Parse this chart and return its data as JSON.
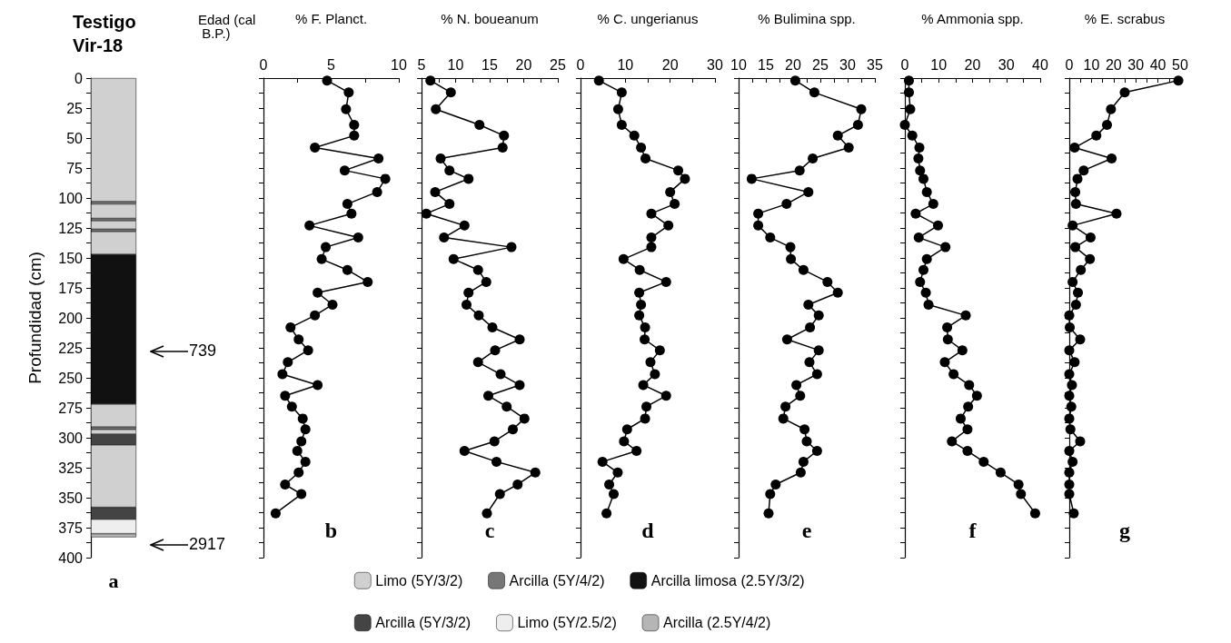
{
  "chart_data": [
    {
      "type": "bar",
      "stacked": true,
      "title": "Testigo Vir-18",
      "ylabel": "Profundidad (cm)",
      "xlabel": "a",
      "categories": [
        null
      ],
      "ylim": [
        400,
        0
      ],
      "yticks": [
        0,
        {
          "value": 12.5,
          "label": null
        },
        25,
        {
          "value": 37.5,
          "label": null
        },
        50,
        {
          "value": 62.5,
          "label": null
        },
        75,
        {
          "value": 87.5,
          "label": null
        },
        100,
        {
          "value": 112.5,
          "label": null
        },
        125,
        {
          "value": 137.5,
          "label": null
        },
        150,
        {
          "value": 162.5,
          "label": null
        },
        175,
        {
          "value": 187.5,
          "label": null
        },
        200,
        {
          "value": 212.5,
          "label": null
        },
        225,
        {
          "value": 237.5,
          "label": null
        },
        250,
        {
          "value": 262.5,
          "label": null
        },
        275,
        {
          "value": 287.5,
          "label": null
        },
        300,
        {
          "value": 312.5,
          "label": null
        },
        325,
        {
          "value": 337.5,
          "label": null
        },
        350,
        {
          "value": 362.5,
          "label": null
        },
        375,
        {
          "value": 387.5,
          "label": null
        },
        400
      ],
      "legend": "bottom",
      "annotations": [
        "Edad (cal B.P.)",
        "739",
        "2917"
      ],
      "series": [
        {
          "name": "Limo (5Y/3/2)",
          "color": "#d0d0d0",
          "values": [
            103
          ]
        },
        {
          "name": "Arcilla (5Y/4/2)",
          "color": "#777777",
          "values": [
            2
          ]
        },
        {
          "color": "#d0d0d0",
          "values": [
            12
          ]
        },
        {
          "color": "#777777",
          "values": [
            2
          ]
        },
        {
          "color": "#d0d0d0",
          "values": [
            7
          ]
        },
        {
          "color": "#777777",
          "values": [
            2
          ]
        },
        {
          "color": "#d0d0d0",
          "values": [
            19
          ]
        },
        {
          "name": "Arcilla limosa (2.5Y/3/2)",
          "color": "#111111",
          "values": [
            125
          ]
        },
        {
          "color": "#d0d0d0",
          "values": [
            19
          ]
        },
        {
          "color": "#777777",
          "values": [
            2
          ]
        },
        {
          "color": "#d0d0d0",
          "values": [
            4
          ]
        },
        {
          "name": "Arcilla (5Y/3/2)",
          "color": "#444444",
          "values": [
            9
          ]
        },
        {
          "color": "#d0d0d0",
          "values": [
            52
          ]
        },
        {
          "color": "#444444",
          "values": [
            10
          ]
        },
        {
          "name": "Limo (5Y/2.5/2)",
          "color": "#eeeeee",
          "values": [
            12
          ]
        },
        {
          "name": "Arcilla (2.5Y/4/2)",
          "color": "#b5b5b5",
          "values": [
            3
          ]
        }
      ]
    },
    {
      "type": "line",
      "title": "% F. Planct.",
      "marker": "circle",
      "line_style": "solid",
      "tick_labels": "x",
      "annotations": [
        "b"
      ],
      "xlim": [
        0,
        10
      ],
      "xticks": [
        0,
        {
          "value": 2.5,
          "label": null
        },
        5,
        {
          "value": 7.5,
          "label": null
        },
        10
      ],
      "ylim": [
        400,
        0
      ],
      "yticks": [
        0,
        12.5,
        25,
        37.5,
        50,
        62.5,
        75,
        87.5,
        100,
        112.5,
        125,
        137.5,
        150,
        162.5,
        175,
        187.5,
        200,
        212.5,
        225,
        237.5,
        250,
        262.5,
        275,
        287.5,
        300,
        312.5,
        325,
        337.5,
        350,
        362.5,
        375,
        387.5,
        400
      ],
      "series": [
        {
          "color": "#000000",
          "x": [
            4.7,
            6.3,
            6.1,
            6.7,
            6.7,
            3.8,
            8.5,
            6.0,
            9.0,
            8.4,
            6.2,
            6.5,
            3.4,
            7.0,
            4.6,
            4.3,
            6.2,
            7.7,
            4.0,
            5.1,
            3.8,
            2.0,
            2.6,
            3.3,
            1.8,
            1.4,
            4.0,
            1.6,
            2.1,
            2.9,
            3.1,
            2.8,
            2.5,
            3.1,
            2.6,
            1.6,
            2.8,
            0.9
          ],
          "values": [
            2,
            12,
            26,
            39,
            48,
            58,
            67,
            77,
            84,
            95,
            105,
            113,
            123,
            133,
            141,
            151,
            160,
            170,
            179,
            189,
            198,
            208,
            218,
            227,
            237,
            247,
            256,
            265,
            274,
            284,
            293,
            303,
            311,
            320,
            329,
            339,
            347,
            363
          ]
        }
      ]
    },
    {
      "type": "line",
      "title": "% N. boueanum",
      "marker": "circle",
      "line_style": "solid",
      "tick_labels": "x",
      "annotations": [
        "c"
      ],
      "xlim": [
        5,
        25
      ],
      "xticks": [
        5,
        {
          "value": 7.5,
          "label": null
        },
        10,
        {
          "value": 12.5,
          "label": null
        },
        15,
        {
          "value": 17.5,
          "label": null
        },
        20,
        {
          "value": 22.5,
          "label": null
        },
        25
      ],
      "ylim": [
        400,
        0
      ],
      "yticks": [
        0,
        12.5,
        25,
        37.5,
        50,
        62.5,
        75,
        87.5,
        100,
        112.5,
        125,
        137.5,
        150,
        162.5,
        175,
        187.5,
        200,
        212.5,
        225,
        237.5,
        250,
        262.5,
        275,
        287.5,
        300,
        312.5,
        325,
        337.5,
        350,
        362.5,
        375,
        387.5,
        400
      ],
      "series": [
        {
          "color": "#000000",
          "x": [
            6.3,
            9.3,
            7.1,
            13.5,
            17.1,
            16.9,
            7.8,
            9.1,
            11.9,
            7.0,
            9.1,
            5.7,
            11.3,
            8.3,
            18.2,
            9.7,
            13.3,
            14.5,
            11.9,
            11.6,
            13.4,
            15.4,
            19.4,
            15.8,
            13.3,
            16.6,
            19.4,
            14.8,
            17.5,
            20.1,
            18.4,
            15.7,
            11.3,
            16.0,
            21.7,
            19.1,
            16.5,
            14.6
          ],
          "values": [
            2,
            12,
            26,
            39,
            48,
            58,
            67,
            77,
            84,
            95,
            105,
            113,
            123,
            133,
            141,
            151,
            160,
            170,
            179,
            189,
            198,
            208,
            218,
            227,
            237,
            247,
            256,
            265,
            274,
            284,
            293,
            303,
            311,
            320,
            329,
            339,
            347,
            363
          ]
        }
      ]
    },
    {
      "type": "line",
      "title": "% C. ungerianus",
      "marker": "circle",
      "line_style": "solid",
      "tick_labels": "x",
      "annotations": [
        "d"
      ],
      "xlim": [
        0,
        30
      ],
      "xticks": [
        0,
        {
          "value": 5,
          "label": null
        },
        10,
        {
          "value": 15,
          "label": null
        },
        20,
        {
          "value": 25,
          "label": null
        },
        30
      ],
      "ylim": [
        400,
        0
      ],
      "yticks": [
        0,
        12.5,
        25,
        37.5,
        50,
        62.5,
        75,
        87.5,
        100,
        112.5,
        125,
        137.5,
        150,
        162.5,
        175,
        187.5,
        200,
        212.5,
        225,
        237.5,
        250,
        262.5,
        275,
        287.5,
        300,
        312.5,
        325,
        337.5,
        350,
        362.5,
        375,
        387.5,
        400
      ],
      "series": [
        {
          "color": "#000000",
          "x": [
            4.1,
            9.2,
            8.4,
            9.2,
            12.0,
            13.5,
            14.5,
            21.8,
            23.3,
            20.0,
            21.0,
            15.8,
            19.6,
            15.8,
            15.8,
            9.6,
            13.2,
            19.1,
            13.1,
            13.5,
            13.1,
            14.4,
            14.3,
            17.7,
            15.6,
            16.6,
            14.0,
            19.1,
            14.7,
            14.4,
            10.4,
            9.7,
            12.5,
            4.9,
            8.3,
            6.4,
            7.4,
            5.8
          ],
          "values": [
            2,
            12,
            26,
            39,
            48,
            58,
            67,
            77,
            84,
            95,
            105,
            113,
            123,
            133,
            141,
            151,
            160,
            170,
            179,
            189,
            198,
            208,
            218,
            227,
            237,
            247,
            256,
            265,
            274,
            284,
            293,
            303,
            311,
            320,
            329,
            339,
            347,
            363
          ]
        }
      ]
    },
    {
      "type": "line",
      "title": "% Bulimina spp.",
      "marker": "circle",
      "line_style": "solid",
      "tick_labels": "x",
      "annotations": [
        "e"
      ],
      "xlim": [
        10,
        35
      ],
      "xticks": [
        10,
        {
          "value": 12.5,
          "label": null
        },
        15,
        {
          "value": 17.5,
          "label": null
        },
        20,
        {
          "value": 22.5,
          "label": null
        },
        25,
        {
          "value": 27.5,
          "label": null
        },
        30,
        {
          "value": 32.5,
          "label": null
        },
        35
      ],
      "ylim": [
        400,
        0
      ],
      "yticks": [
        0,
        12.5,
        25,
        37.5,
        50,
        62.5,
        75,
        87.5,
        100,
        112.5,
        125,
        137.5,
        150,
        162.5,
        175,
        187.5,
        200,
        212.5,
        225,
        237.5,
        250,
        262.5,
        275,
        287.5,
        300,
        312.5,
        325,
        337.5,
        350,
        362.5,
        375,
        387.5,
        400
      ],
      "series": [
        {
          "color": "#000000",
          "x": [
            20.4,
            23.9,
            32.5,
            31.9,
            28.2,
            30.2,
            23.6,
            21.2,
            12.4,
            22.8,
            18.8,
            13.6,
            13.6,
            15.8,
            19.5,
            19.6,
            21.9,
            26.3,
            28.2,
            22.8,
            24.7,
            23.1,
            18.9,
            24.7,
            23.0,
            24.4,
            20.6,
            21.3,
            18.6,
            18.2,
            22.1,
            22.5,
            24.4,
            21.9,
            21.4,
            16.8,
            15.8,
            15.5
          ],
          "values": [
            2,
            12,
            26,
            39,
            48,
            58,
            67,
            77,
            84,
            95,
            105,
            113,
            123,
            133,
            141,
            151,
            160,
            170,
            179,
            189,
            198,
            208,
            218,
            227,
            237,
            247,
            256,
            265,
            274,
            284,
            293,
            303,
            311,
            320,
            329,
            339,
            347,
            363
          ]
        }
      ]
    },
    {
      "type": "line",
      "title": "% Ammonia spp.",
      "marker": "circle",
      "line_style": "solid",
      "tick_labels": "x",
      "annotations": [
        "f"
      ],
      "xlim": [
        0,
        40
      ],
      "xticks": [
        0,
        {
          "value": 5,
          "label": null
        },
        10,
        {
          "value": 15,
          "label": null
        },
        20,
        {
          "value": 25,
          "label": null
        },
        30,
        {
          "value": 35,
          "label": null
        },
        40
      ],
      "ylim": [
        400,
        0
      ],
      "yticks": [
        0,
        12.5,
        25,
        37.5,
        50,
        62.5,
        75,
        87.5,
        100,
        112.5,
        125,
        137.5,
        150,
        162.5,
        175,
        187.5,
        200,
        212.5,
        225,
        237.5,
        250,
        262.5,
        275,
        287.5,
        300,
        312.5,
        325,
        337.5,
        350,
        362.5,
        375,
        387.5,
        400
      ],
      "series": [
        {
          "color": "#000000",
          "x": [
            1.2,
            1.2,
            1.6,
            0,
            2.2,
            4.3,
            4.0,
            4.5,
            5.5,
            6.5,
            8.4,
            3.2,
            9.8,
            4.1,
            12.0,
            6.5,
            5.5,
            4.5,
            6.2,
            7.0,
            18.0,
            12.5,
            12.7,
            17.0,
            11.8,
            14.4,
            19.0,
            21.3,
            18.7,
            16.5,
            18.5,
            13.9,
            18.5,
            23.3,
            28.3,
            33.6,
            34.3,
            38.5
          ],
          "values": [
            2,
            12,
            26,
            39,
            48,
            58,
            67,
            77,
            84,
            95,
            105,
            113,
            123,
            133,
            141,
            151,
            160,
            170,
            179,
            189,
            198,
            208,
            218,
            227,
            237,
            247,
            256,
            265,
            274,
            284,
            293,
            303,
            311,
            320,
            329,
            339,
            347,
            363
          ]
        }
      ]
    },
    {
      "type": "line",
      "title": "% E. scrabus",
      "marker": "circle",
      "line_style": "solid",
      "tick_labels": "x",
      "annotations": [
        "g"
      ],
      "xlim": [
        0,
        50
      ],
      "xticks": [
        0,
        {
          "value": 5,
          "label": null
        },
        10,
        {
          "value": 15,
          "label": null
        },
        20,
        {
          "value": 25,
          "label": null
        },
        30,
        {
          "value": 35,
          "label": null
        },
        40,
        {
          "value": 45,
          "label": null
        },
        50
      ],
      "ylim": [
        400,
        0
      ],
      "yticks": [
        0,
        12.5,
        25,
        37.5,
        50,
        62.5,
        75,
        87.5,
        100,
        112.5,
        125,
        137.5,
        150,
        162.5,
        175,
        187.5,
        200,
        212.5,
        225,
        237.5,
        250,
        262.5,
        275,
        287.5,
        300,
        312.5,
        325,
        337.5,
        350,
        362.5,
        375,
        387.5,
        400
      ],
      "series": [
        {
          "color": "#000000",
          "x": [
            49.2,
            25,
            18.8,
            17.0,
            12.2,
            2.4,
            19.1,
            6.5,
            3.7,
            2.7,
            3.0,
            21.3,
            1.5,
            9.6,
            2.7,
            9.3,
            5.2,
            1.5,
            3.9,
            3.0,
            0,
            0.2,
            4.9,
            0,
            2.4,
            0,
            1.2,
            0,
            0.9,
            0,
            0.5,
            4.9,
            0,
            1.5,
            0,
            0,
            0,
            2.0
          ],
          "values": [
            2,
            12,
            26,
            39,
            48,
            58,
            67,
            77,
            84,
            95,
            105,
            113,
            123,
            133,
            141,
            151,
            160,
            170,
            179,
            189,
            198,
            208,
            218,
            227,
            237,
            247,
            256,
            265,
            274,
            284,
            293,
            303,
            311,
            320,
            329,
            339,
            347,
            363
          ]
        }
      ]
    }
  ]
}
